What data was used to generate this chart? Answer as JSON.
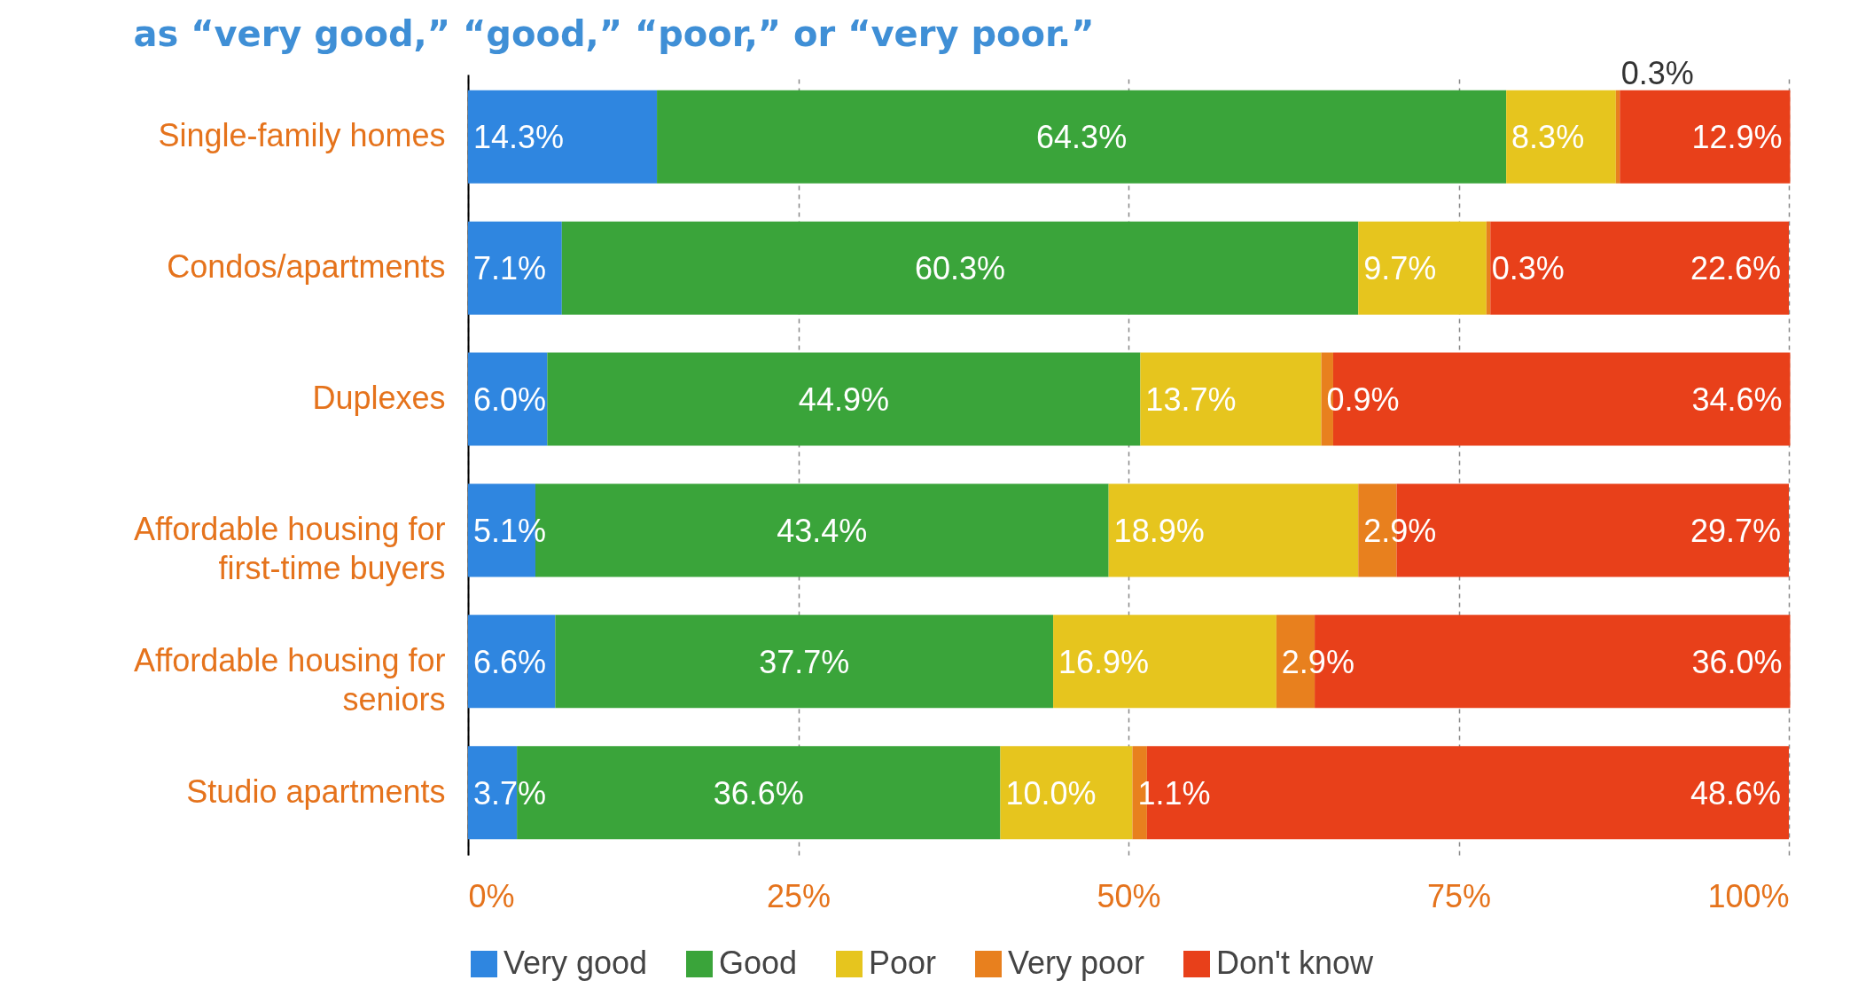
{
  "chart_data": {
    "type": "bar",
    "orientation": "horizontal",
    "stacked": true,
    "title": "as “very good,” “good,” “poor,” or “very poor.”",
    "categories": [
      "Single-family homes",
      "Condos/apartments",
      "Duplexes",
      "Affordable housing for first-time buyers",
      "Affordable housing for seniors",
      "Studio apartments"
    ],
    "series": [
      {
        "name": "Very good",
        "color": "#2f86e0",
        "values": [
          14.3,
          7.1,
          6.0,
          5.1,
          6.6,
          3.7
        ],
        "value_labels": [
          "14.3%",
          "7.1%",
          "6.0%",
          "5.1%",
          "6.6%",
          "3.7%"
        ]
      },
      {
        "name": "Good",
        "color": "#3aa43a",
        "values": [
          64.3,
          60.3,
          44.9,
          43.4,
          37.7,
          36.6
        ],
        "value_labels": [
          "64.3%",
          "60.3%",
          "44.9%",
          "43.4%",
          "37.7%",
          "36.6%"
        ]
      },
      {
        "name": "Poor",
        "color": "#e6c51e",
        "values": [
          8.3,
          9.7,
          13.7,
          18.9,
          16.9,
          10.0
        ],
        "value_labels": [
          "8.3%",
          "9.7%",
          "13.7%",
          "18.9%",
          "16.9%",
          "10.0%"
        ]
      },
      {
        "name": "Very poor",
        "color": "#e8801e",
        "values": [
          0.3,
          0.3,
          0.9,
          2.9,
          2.9,
          1.1
        ],
        "value_labels": [
          "0.3%",
          "0.3%",
          "0.9%",
          "2.9%",
          "2.9%",
          "1.1%"
        ]
      },
      {
        "name": "Don't know",
        "color": "#e8401a",
        "values": [
          12.9,
          22.6,
          34.6,
          29.7,
          36.0,
          48.6
        ],
        "value_labels": [
          "12.9%",
          "22.6%",
          "34.6%",
          "29.7%",
          "36.0%",
          "48.6%"
        ]
      }
    ],
    "xlim": [
      0,
      100
    ],
    "xticks": [
      {
        "value": 0,
        "label": "0%"
      },
      {
        "value": 25,
        "label": "25%"
      },
      {
        "value": 50,
        "label": "50%"
      },
      {
        "value": 75,
        "label": "75%"
      },
      {
        "value": 100,
        "label": "100%"
      }
    ],
    "grid": "x",
    "legend": "bottom"
  }
}
